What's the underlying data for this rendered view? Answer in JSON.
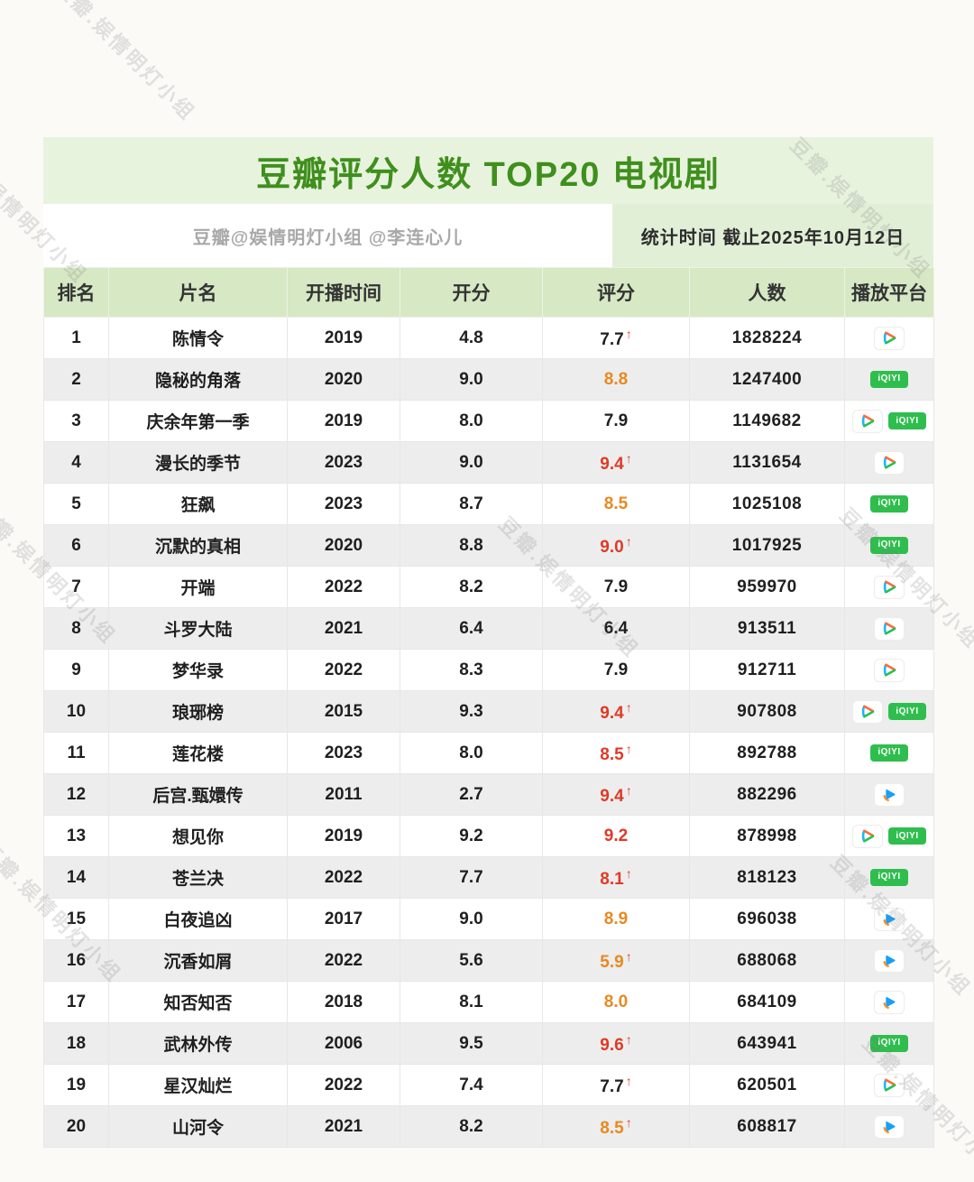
{
  "page": {
    "title": "豆瓣评分人数 TOP20 电视剧",
    "credit": "豆瓣@娱情明灯小组 @李连心儿",
    "stats_time": "统计时间  截止2025年10月12日",
    "watermark": "豆瓣.娱情明灯小组"
  },
  "colors": {
    "title_green": "#3f8f1d",
    "title_bg": "#e8f3de",
    "header_bg": "#d6e8c4",
    "stats_bg": "#e2efd7",
    "alt_row": "#ededed",
    "rating_red": "#df3a26",
    "rating_orange": "#e8891f",
    "iqiyi_green": "#2fbe4e",
    "youku_blue": "#18a0f8"
  },
  "platform_icons": {
    "tencent": "tencent-video-play-icon",
    "iqiyi": "iqiyi-green-badge",
    "youku": "youku-play-icon",
    "iqiyi_label": "iQIYI"
  },
  "chart_data": {
    "type": "table",
    "title": "豆瓣评分人数 TOP20 电视剧",
    "columns": [
      "排名",
      "片名",
      "开播时间",
      "开分",
      "评分",
      "人数",
      "播放平台"
    ],
    "rows": [
      {
        "rank": "1",
        "title": "陈情令",
        "year": "2019",
        "open_score": "4.8",
        "rating": "7.7",
        "rating_style": "dark",
        "arrow": true,
        "count": "1828224",
        "platforms": [
          "tencent"
        ]
      },
      {
        "rank": "2",
        "title": "隐秘的角落",
        "year": "2020",
        "open_score": "9.0",
        "rating": "8.8",
        "rating_style": "orange",
        "arrow": false,
        "count": "1247400",
        "platforms": [
          "iqiyi"
        ]
      },
      {
        "rank": "3",
        "title": "庆余年第一季",
        "year": "2019",
        "open_score": "8.0",
        "rating": "7.9",
        "rating_style": "dark",
        "arrow": false,
        "count": "1149682",
        "platforms": [
          "tencent",
          "iqiyi"
        ]
      },
      {
        "rank": "4",
        "title": "漫长的季节",
        "year": "2023",
        "open_score": "9.0",
        "rating": "9.4",
        "rating_style": "red",
        "arrow": true,
        "count": "1131654",
        "platforms": [
          "tencent"
        ]
      },
      {
        "rank": "5",
        "title": "狂飙",
        "year": "2023",
        "open_score": "8.7",
        "rating": "8.5",
        "rating_style": "orange",
        "arrow": false,
        "count": "1025108",
        "platforms": [
          "iqiyi"
        ]
      },
      {
        "rank": "6",
        "title": "沉默的真相",
        "year": "2020",
        "open_score": "8.8",
        "rating": "9.0",
        "rating_style": "red",
        "arrow": true,
        "count": "1017925",
        "platforms": [
          "iqiyi"
        ]
      },
      {
        "rank": "7",
        "title": "开端",
        "year": "2022",
        "open_score": "8.2",
        "rating": "7.9",
        "rating_style": "dark",
        "arrow": false,
        "count": "959970",
        "platforms": [
          "tencent"
        ]
      },
      {
        "rank": "8",
        "title": "斗罗大陆",
        "year": "2021",
        "open_score": "6.4",
        "rating": "6.4",
        "rating_style": "dark",
        "arrow": false,
        "count": "913511",
        "platforms": [
          "tencent"
        ]
      },
      {
        "rank": "9",
        "title": "梦华录",
        "year": "2022",
        "open_score": "8.3",
        "rating": "7.9",
        "rating_style": "dark",
        "arrow": false,
        "count": "912711",
        "platforms": [
          "tencent"
        ]
      },
      {
        "rank": "10",
        "title": "琅琊榜",
        "year": "2015",
        "open_score": "9.3",
        "rating": "9.4",
        "rating_style": "red",
        "arrow": true,
        "count": "907808",
        "platforms": [
          "tencent",
          "iqiyi"
        ]
      },
      {
        "rank": "11",
        "title": "莲花楼",
        "year": "2023",
        "open_score": "8.0",
        "rating": "8.5",
        "rating_style": "red",
        "arrow": true,
        "count": "892788",
        "platforms": [
          "iqiyi"
        ]
      },
      {
        "rank": "12",
        "title": "后宫.甄嬛传",
        "year": "2011",
        "open_score": "2.7",
        "rating": "9.4",
        "rating_style": "red",
        "arrow": true,
        "count": "882296",
        "platforms": [
          "youku"
        ]
      },
      {
        "rank": "13",
        "title": "想见你",
        "year": "2019",
        "open_score": "9.2",
        "rating": "9.2",
        "rating_style": "red",
        "arrow": false,
        "count": "878998",
        "platforms": [
          "tencent",
          "iqiyi"
        ]
      },
      {
        "rank": "14",
        "title": "苍兰决",
        "year": "2022",
        "open_score": "7.7",
        "rating": "8.1",
        "rating_style": "red",
        "arrow": true,
        "count": "818123",
        "platforms": [
          "iqiyi"
        ]
      },
      {
        "rank": "15",
        "title": "白夜追凶",
        "year": "2017",
        "open_score": "9.0",
        "rating": "8.9",
        "rating_style": "orange",
        "arrow": false,
        "count": "696038",
        "platforms": [
          "youku"
        ]
      },
      {
        "rank": "16",
        "title": "沉香如屑",
        "year": "2022",
        "open_score": "5.6",
        "rating": "5.9",
        "rating_style": "orange",
        "arrow": true,
        "count": "688068",
        "platforms": [
          "youku"
        ]
      },
      {
        "rank": "17",
        "title": "知否知否",
        "year": "2018",
        "open_score": "8.1",
        "rating": "8.0",
        "rating_style": "orange",
        "arrow": false,
        "count": "684109",
        "platforms": [
          "youku"
        ]
      },
      {
        "rank": "18",
        "title": "武林外传",
        "year": "2006",
        "open_score": "9.5",
        "rating": "9.6",
        "rating_style": "red",
        "arrow": true,
        "count": "643941",
        "platforms": [
          "iqiyi"
        ]
      },
      {
        "rank": "19",
        "title": "星汉灿烂",
        "year": "2022",
        "open_score": "7.4",
        "rating": "7.7",
        "rating_style": "dark",
        "arrow": true,
        "count": "620501",
        "platforms": [
          "tencent"
        ]
      },
      {
        "rank": "20",
        "title": "山河令",
        "year": "2021",
        "open_score": "8.2",
        "rating": "8.5",
        "rating_style": "orange",
        "arrow": true,
        "count": "608817",
        "platforms": [
          "youku"
        ]
      }
    ]
  }
}
